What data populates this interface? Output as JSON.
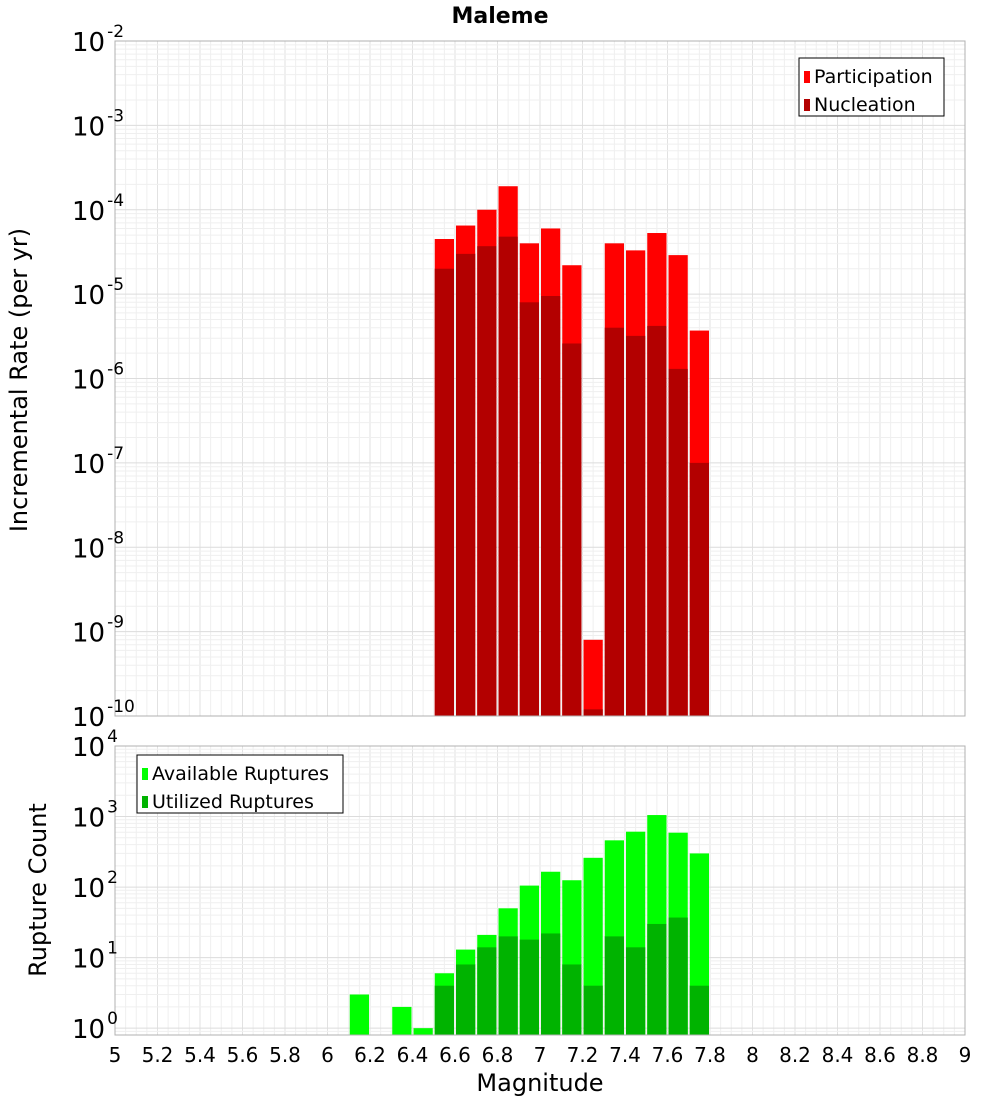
{
  "chart_data": [
    {
      "type": "bar",
      "title": "Maleme",
      "xlabel": "",
      "ylabel": "Incremental Rate (per yr)",
      "xlim": [
        5,
        9
      ],
      "ylim": [
        1e-10,
        0.01
      ],
      "yscale": "log",
      "grid": true,
      "legend_position": "top-right",
      "x": [
        6.55,
        6.65,
        6.75,
        6.85,
        6.95,
        7.05,
        7.15,
        7.25,
        7.35,
        7.45,
        7.55,
        7.65,
        7.75
      ],
      "series": [
        {
          "name": "Participation",
          "color": "#ff0000",
          "values": [
            4.5e-05,
            6.5e-05,
            0.0001,
            0.00019,
            4e-05,
            6e-05,
            2.2e-05,
            8e-10,
            4e-05,
            3.3e-05,
            5.3e-05,
            2.9e-05,
            3.7e-06
          ]
        },
        {
          "name": "Nucleation",
          "color": "#b30000",
          "values": [
            2e-05,
            3e-05,
            3.7e-05,
            4.8e-05,
            8e-06,
            9.5e-06,
            2.6e-06,
            1.2e-10,
            4e-06,
            3.2e-06,
            4.2e-06,
            1.3e-06,
            1e-07
          ]
        }
      ]
    },
    {
      "type": "bar",
      "title": "",
      "xlabel": "Magnitude",
      "ylabel": "Rupture Count",
      "xlim": [
        5,
        9
      ],
      "ylim": [
        0.8,
        10000
      ],
      "yscale": "log",
      "grid": true,
      "legend_position": "top-left",
      "x": [
        6.15,
        6.25,
        6.35,
        6.45,
        6.55,
        6.65,
        6.75,
        6.85,
        6.95,
        7.05,
        7.15,
        7.25,
        7.35,
        7.45,
        7.55,
        7.65,
        7.75
      ],
      "series": [
        {
          "name": "Available Ruptures",
          "color": "#00ff00",
          "values": [
            3,
            0,
            2,
            1,
            6,
            13,
            21,
            50,
            105,
            165,
            125,
            260,
            460,
            610,
            1050,
            590,
            300
          ]
        },
        {
          "name": "Utilized Ruptures",
          "color": "#00b300",
          "values": [
            0,
            0,
            0,
            0,
            4,
            8,
            14,
            20,
            18,
            22,
            8,
            4,
            20,
            14,
            30,
            37,
            4
          ]
        }
      ],
      "xticks": [
        "5",
        "5.2",
        "5.4",
        "5.6",
        "5.8",
        "6",
        "6.2",
        "6.4",
        "6.6",
        "6.8",
        "7",
        "7.2",
        "7.4",
        "7.6",
        "7.8",
        "8",
        "8.2",
        "8.4",
        "8.6",
        "8.8",
        "9"
      ]
    }
  ],
  "top_yticks": [
    {
      "base": "10",
      "exp": "-2"
    },
    {
      "base": "10",
      "exp": "-3"
    },
    {
      "base": "10",
      "exp": "-4"
    },
    {
      "base": "10",
      "exp": "-5"
    },
    {
      "base": "10",
      "exp": "-6"
    },
    {
      "base": "10",
      "exp": "-7"
    },
    {
      "base": "10",
      "exp": "-8"
    },
    {
      "base": "10",
      "exp": "-9"
    },
    {
      "base": "10",
      "exp": "-10"
    }
  ],
  "bottom_yticks": [
    {
      "base": "10",
      "exp": "4"
    },
    {
      "base": "10",
      "exp": "3"
    },
    {
      "base": "10",
      "exp": "2"
    },
    {
      "base": "10",
      "exp": "1"
    },
    {
      "base": "10",
      "exp": "0"
    }
  ]
}
